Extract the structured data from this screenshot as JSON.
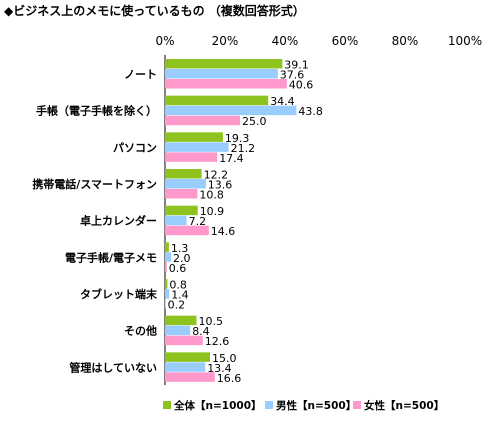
{
  "chart_data": {
    "type": "bar",
    "orientation": "horizontal",
    "title": "◆ビジネス上のメモに使っているもの （複数回答形式）",
    "xlim": [
      0,
      100
    ],
    "x_ticks": [
      "0%",
      "20%",
      "40%",
      "60%",
      "80%",
      "100%"
    ],
    "x_tick_values": [
      0,
      20,
      40,
      60,
      80,
      100
    ],
    "grid": false,
    "legend_position": "bottom-right",
    "categories": [
      "ノート",
      "手帳（電子手帳を除く）",
      "パソコン",
      "携帯電話/スマートフォン",
      "卓上カレンダー",
      "電子手帳/電子メモ",
      "タブレット端末",
      "その他",
      "管理はしていない"
    ],
    "series": [
      {
        "name": "全体【n=1000】",
        "color": "#8dc21f",
        "values": [
          39.1,
          34.4,
          19.3,
          12.2,
          10.9,
          1.3,
          0.8,
          10.5,
          15.0
        ],
        "labels": [
          "39.1",
          "34.4",
          "19.3",
          "12.2",
          "10.9",
          "1.3",
          "0.8",
          "10.5",
          "15.0"
        ]
      },
      {
        "name": "男性【n=500】",
        "color": "#99ccff",
        "values": [
          37.6,
          43.8,
          21.2,
          13.6,
          7.2,
          2.0,
          1.4,
          8.4,
          13.4
        ],
        "labels": [
          "37.6",
          "43.8",
          "21.2",
          "13.6",
          "7.2",
          "2.0",
          "1.4",
          "8.4",
          "13.4"
        ]
      },
      {
        "name": "女性【n=500】",
        "color": "#ff99cc",
        "values": [
          40.6,
          25.0,
          17.4,
          10.8,
          14.6,
          0.6,
          0.2,
          12.6,
          16.6
        ],
        "labels": [
          "40.6",
          "25.0",
          "17.4",
          "10.8",
          "14.6",
          "0.6",
          "0.2",
          "12.6",
          "16.6"
        ]
      }
    ]
  }
}
